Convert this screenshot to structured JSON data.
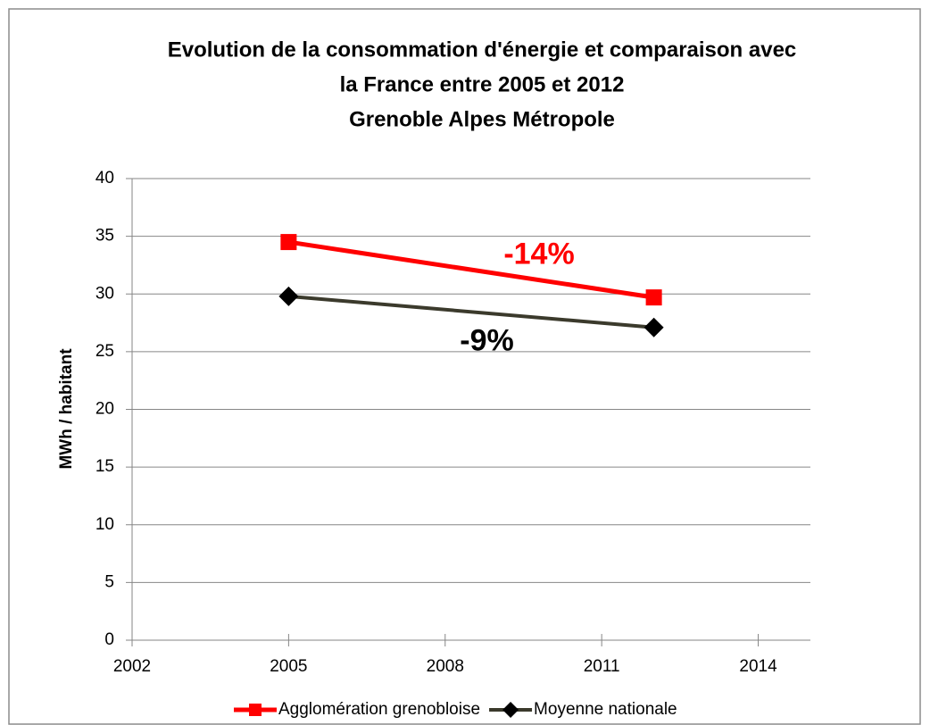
{
  "chart_data": {
    "type": "line",
    "title": [
      "Evolution de la consommation d'énergie et comparaison avec",
      "la France entre 2005 et 2012",
      "Grenoble Alpes Métropole"
    ],
    "y_label": "MWh / habitant",
    "series": [
      {
        "name": "Agglomération grenobloise",
        "color": "#ff0000",
        "marker": "square",
        "x": [
          2005,
          2012
        ],
        "values": [
          34.5,
          29.7
        ]
      },
      {
        "name": "Moyenne nationale",
        "color": "#3b3a2c",
        "marker": "diamond",
        "x": [
          2005,
          2012
        ],
        "values": [
          29.8,
          27.1
        ]
      }
    ],
    "xlim": [
      2002,
      2015
    ],
    "xticks": [
      2002,
      2005,
      2008,
      2011,
      2014
    ],
    "ylim": [
      0,
      40
    ],
    "yticks": [
      0,
      5,
      10,
      15,
      20,
      25,
      30,
      35,
      40
    ],
    "grid": true,
    "legend": "bottom",
    "annotations": [
      {
        "text": "-14%",
        "color": "#ff0000",
        "x": 2009.8,
        "y": 33.3
      },
      {
        "text": "-9%",
        "color": "#000000",
        "x": 2008.8,
        "y": 25.8
      }
    ]
  }
}
